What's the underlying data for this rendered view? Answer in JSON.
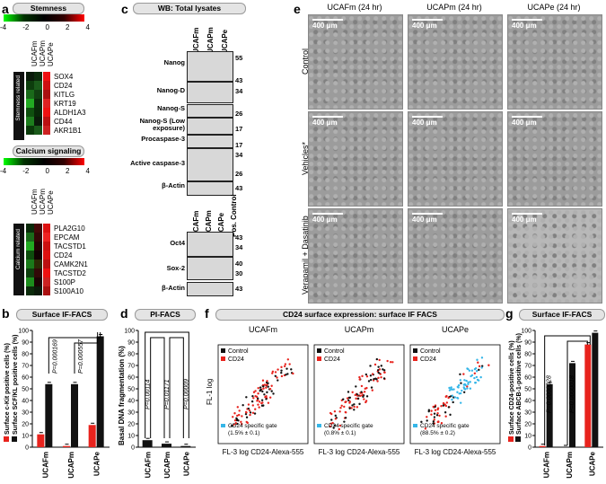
{
  "panels": {
    "a": "a",
    "b": "b",
    "c": "c",
    "d": "d",
    "e": "e",
    "f": "f",
    "g": "g"
  },
  "panel_a": {
    "stemness": {
      "title": "Stemness",
      "scale_ticks": [
        "-4",
        "-2",
        "0",
        "2",
        "4"
      ],
      "columns": [
        "UCAFm",
        "UCAPm",
        "UCAPe"
      ],
      "side_label": "Stemness related",
      "genes": [
        "SOX4",
        "CD24",
        "KITLG",
        "KRT19",
        "ALDH1A3",
        "CD44",
        "AKR1B1"
      ],
      "heat": [
        [
          "#0a1a0a",
          "#0c2c0c",
          "#ee1111"
        ],
        [
          "#0d3d0d",
          "#1a5a1a",
          "#cc1111"
        ],
        [
          "#1a6a1a",
          "#114011",
          "#aa1111"
        ],
        [
          "#22aa22",
          "#0a2a0a",
          "#dd2222"
        ],
        [
          "#0f4f0f",
          "#082808",
          "#ee1111"
        ],
        [
          "#1d7d1d",
          "#0a1a0a",
          "#bb1111"
        ],
        [
          "#0a3a0a",
          "#1a5a1a",
          "#cc2222"
        ]
      ]
    },
    "calcium": {
      "title": "Calcium signaling",
      "scale_ticks": [
        "-4",
        "-2",
        "0",
        "2",
        "4"
      ],
      "columns": [
        "UCAFm",
        "UCAPm",
        "UCAPe"
      ],
      "side_label": "Calcium related",
      "genes": [
        "PLA2G10",
        "EPCAM",
        "TACSTD1",
        "CD24",
        "CAMK2N1",
        "TACSTD2",
        "S100P",
        "S100A10"
      ],
      "heat": [
        [
          "#0a2a0a",
          "#440808",
          "#dd1111"
        ],
        [
          "#1a6a1a",
          "#330606",
          "#ee2222"
        ],
        [
          "#22aa22",
          "#220404",
          "#cc1111"
        ],
        [
          "#0d4d0d",
          "#110202",
          "#dd1111"
        ],
        [
          "#1a7a1a",
          "#2a2a04",
          "#bb1111"
        ],
        [
          "#0e3e0e",
          "#330808",
          "#ee1111"
        ],
        [
          "#1c8c1c",
          "#1a0404",
          "#cc2222"
        ],
        [
          "#0b2b0b",
          "#0a1a0a",
          "#aa1111"
        ]
      ]
    }
  },
  "panel_b": {
    "title": "Surface  IF-FACS",
    "legend": [
      "Surface c-Kit positive cells (%)",
      "Surface SCF/KL positive cells (%)"
    ],
    "legend_colors": [
      "#e8231d",
      "#111111"
    ],
    "pvalues": [
      "P=0.000169",
      "P=0.000557"
    ],
    "y_ticks": [
      "0",
      "10",
      "20",
      "30",
      "40",
      "50",
      "60",
      "70",
      "80",
      "90",
      "100"
    ]
  },
  "panel_c": {
    "title": "WB: Total lysates",
    "columns_top": [
      "UCAFm",
      "UCAPm",
      "UCAPe"
    ],
    "rows_top": [
      "Nanog",
      "Nanog-D",
      "Nanog-S",
      "Nanog-S (Low exposure)",
      "Procaspase-3",
      "Active caspase-3",
      "β-Actin"
    ],
    "markers_top": [
      "55",
      "43",
      "34",
      "26",
      "17",
      "17",
      "34",
      "26",
      "17",
      "43"
    ],
    "columns_bottom": [
      "UCAFm",
      "UCAPm",
      "UCAPe",
      "Pos. Control"
    ],
    "rows_bottom": [
      "Oct4",
      "Sox-2",
      "β-Actin"
    ],
    "markers_bottom": [
      "43",
      "34",
      "40",
      "30",
      "43"
    ]
  },
  "panel_d": {
    "title": "PI-FACS",
    "ylabel": "Basal DNA fragmentation (%)",
    "pvalues": [
      "P=0.00114",
      "P=0.01171",
      "P=0.00009"
    ],
    "y_ticks": [
      "0",
      "10",
      "20",
      "30",
      "40",
      "50",
      "60",
      "70",
      "80",
      "90",
      "100"
    ]
  },
  "panel_e": {
    "columns": [
      "UCAFm (24 hr)",
      "UCAPm (24 hr)",
      "UCAPe (24 hr)"
    ],
    "rows": [
      "Control",
      "Vehicles*",
      "Verapamil + Dasatinib"
    ],
    "scale": "400 μm"
  },
  "panel_f": {
    "title": "CD24 surface expression: surface IF FACS",
    "plots": [
      {
        "name": "UCAFm",
        "gate_value": "(1.5% ± 0.1)"
      },
      {
        "name": "UCAPm",
        "gate_value": "(0.8% ± 0.1)"
      },
      {
        "name": "UCAPe",
        "gate_value": "(88.5% ± 0.2)"
      }
    ],
    "legend": [
      "Control",
      "CD24"
    ],
    "gate_label": "CD24 specific gate",
    "ylabel": "FL-1 log",
    "xlabel": "FL-3 log CD24-Alexa-555"
  },
  "panel_g": {
    "title": "Surface  IF-FACS",
    "legend": [
      "Surface CD24-positive cells (%)",
      "Surface ABCB-1-positive cells (%)"
    ],
    "legend_colors": [
      "#e8231d",
      "#111111"
    ],
    "pvalues": [
      "P=0.0000028",
      "P=0.0000018"
    ],
    "y_ticks": [
      "0",
      "10",
      "20",
      "30",
      "40",
      "50",
      "60",
      "70",
      "80",
      "90",
      "100"
    ]
  },
  "chart_data": [
    {
      "type": "bar",
      "panel": "b",
      "categories": [
        "UCAFm",
        "UCAPm",
        "UCAPe"
      ],
      "series": [
        {
          "name": "Surface c-Kit positive cells (%)",
          "values": [
            11,
            1,
            19
          ]
        },
        {
          "name": "Surface SCF/KL positive cells (%)",
          "values": [
            54,
            54,
            95
          ]
        }
      ],
      "ylim": [
        0,
        100
      ]
    },
    {
      "type": "bar",
      "panel": "d",
      "categories": [
        "UCAFm",
        "UCAPm",
        "UCAPe"
      ],
      "values": [
        6,
        3,
        1
      ],
      "ylabel": "Basal DNA fragmentation (%)",
      "ylim": [
        0,
        100
      ]
    },
    {
      "type": "bar",
      "panel": "g",
      "categories": [
        "UCAFm",
        "UCAPm",
        "UCAPe"
      ],
      "series": [
        {
          "name": "Surface CD24-positive cells (%)",
          "values": [
            1,
            0,
            88
          ]
        },
        {
          "name": "Surface ABCB-1-positive cells (%)",
          "values": [
            54,
            72,
            98
          ]
        }
      ],
      "ylim": [
        0,
        100
      ]
    }
  ]
}
